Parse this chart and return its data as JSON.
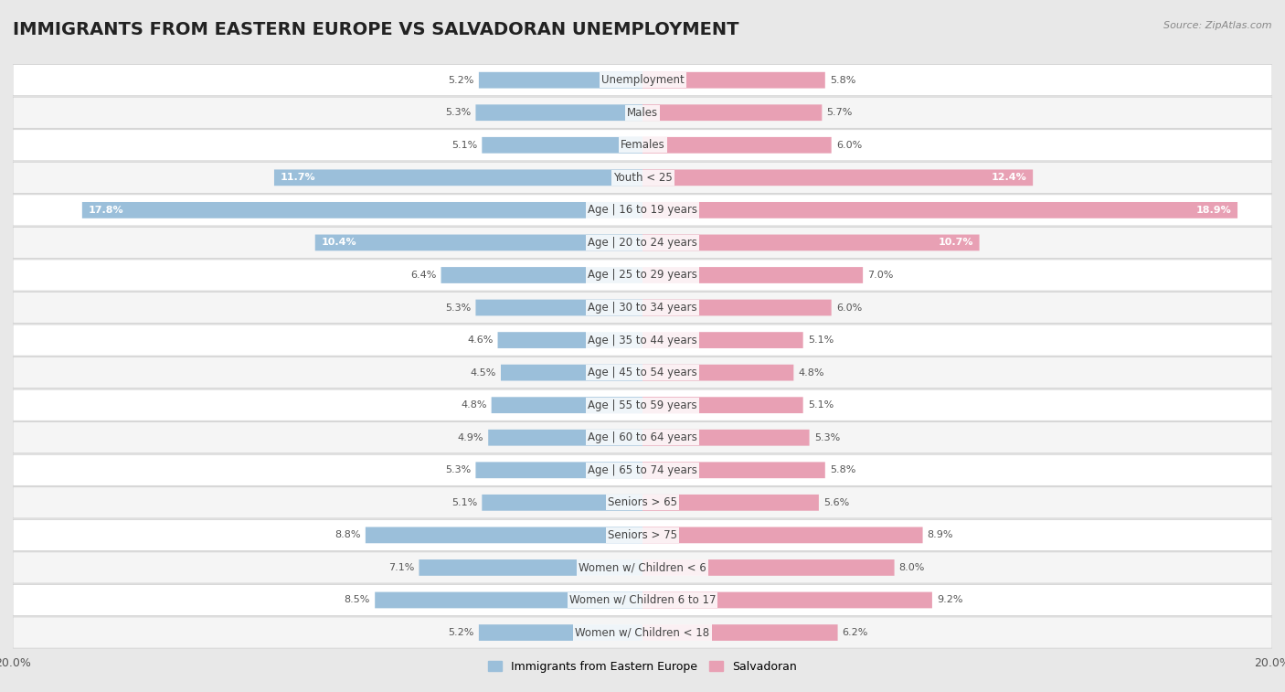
{
  "title": "IMMIGRANTS FROM EASTERN EUROPE VS SALVADORAN UNEMPLOYMENT",
  "source": "Source: ZipAtlas.com",
  "categories": [
    "Unemployment",
    "Males",
    "Females",
    "Youth < 25",
    "Age | 16 to 19 years",
    "Age | 20 to 24 years",
    "Age | 25 to 29 years",
    "Age | 30 to 34 years",
    "Age | 35 to 44 years",
    "Age | 45 to 54 years",
    "Age | 55 to 59 years",
    "Age | 60 to 64 years",
    "Age | 65 to 74 years",
    "Seniors > 65",
    "Seniors > 75",
    "Women w/ Children < 6",
    "Women w/ Children 6 to 17",
    "Women w/ Children < 18"
  ],
  "left_values": [
    5.2,
    5.3,
    5.1,
    11.7,
    17.8,
    10.4,
    6.4,
    5.3,
    4.6,
    4.5,
    4.8,
    4.9,
    5.3,
    5.1,
    8.8,
    7.1,
    8.5,
    5.2
  ],
  "right_values": [
    5.8,
    5.7,
    6.0,
    12.4,
    18.9,
    10.7,
    7.0,
    6.0,
    5.1,
    4.8,
    5.1,
    5.3,
    5.8,
    5.6,
    8.9,
    8.0,
    9.2,
    6.2
  ],
  "left_color": "#9bbfda",
  "right_color": "#e8a0b4",
  "left_label": "Immigrants from Eastern Europe",
  "right_label": "Salvadoran",
  "xlim": 20.0,
  "page_bg": "#e8e8e8",
  "row_bg_odd": "#f5f5f5",
  "row_bg_even": "#ffffff",
  "title_fontsize": 14,
  "cat_fontsize": 8.5,
  "value_fontsize": 8.0
}
